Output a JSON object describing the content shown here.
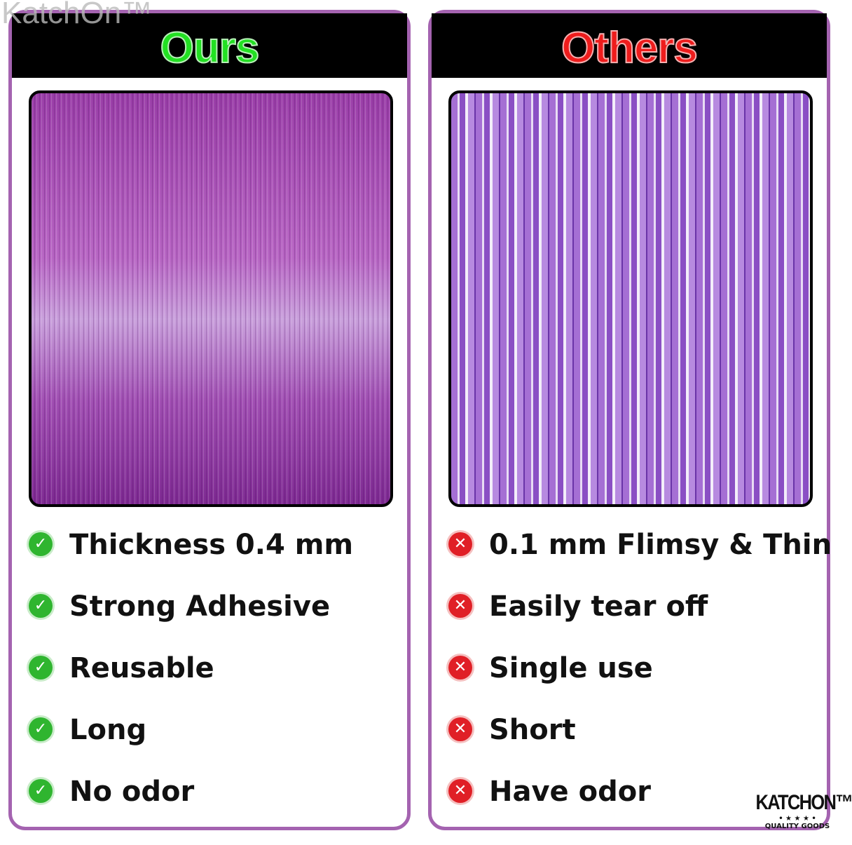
{
  "watermark": "KatchOn™",
  "left": {
    "title": "Ours",
    "title_color": "#22e022",
    "items": [
      "Thickness 0.4 mm",
      "Strong Adhesive",
      "Reusable",
      "Long",
      "No odor"
    ],
    "icon": "check-circle-icon"
  },
  "right": {
    "title": "Others",
    "title_color": "#ee1c1c",
    "items": [
      "0.1 mm Flimsy & Thin",
      "Easily tear off",
      "Single use",
      "Short",
      "Have odor"
    ],
    "icon": "x-circle-icon"
  },
  "logo": {
    "brand": "KATCHON™",
    "stars": "• ★ ★ ★ •",
    "tagline": "QUALITY GOODS"
  },
  "border_color": "#a463b0"
}
